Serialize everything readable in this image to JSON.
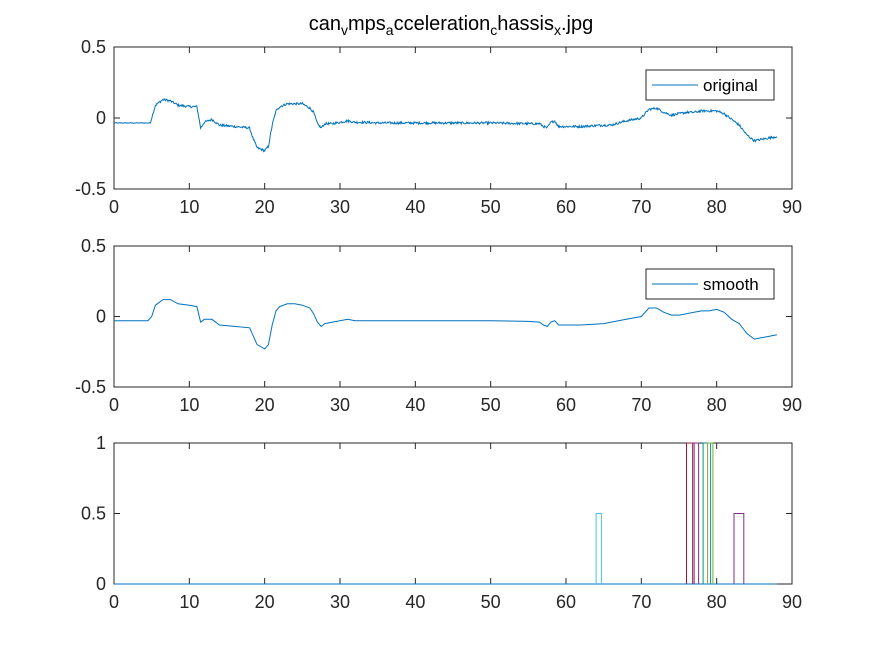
{
  "colors": {
    "original": "#0072BD",
    "smooth": "#0072BD",
    "axis": "#262626",
    "flag_lightblue": "#4DBEEE",
    "flag_red": "#A2142F",
    "flag_purple": "#7E2F8E",
    "flag_green": "#77AC30",
    "flag_teal": "#0A8F8F",
    "flag_baseline": "#0072BD"
  },
  "chart_data": [
    {
      "type": "line",
      "title": "can_v mps_a cceleration_c hassis_x .jpg",
      "title_parts": [
        {
          "text": "can",
          "sub": false
        },
        {
          "text": "v",
          "sub": true
        },
        {
          "text": "mps",
          "sub": false
        },
        {
          "text": "a",
          "sub": true
        },
        {
          "text": "cceleration",
          "sub": false
        },
        {
          "text": "c",
          "sub": true
        },
        {
          "text": "hassis",
          "sub": false
        },
        {
          "text": "x",
          "sub": true
        },
        {
          "text": ".jpg",
          "sub": false
        }
      ],
      "xlim": [
        0,
        90
      ],
      "ylim": [
        -0.5,
        0.5
      ],
      "xticks": [
        "0",
        "10",
        "20",
        "30",
        "40",
        "50",
        "60",
        "70",
        "80",
        "90"
      ],
      "yticks": [
        "-0.5",
        "0",
        "0.5"
      ],
      "legend_position": "top-right",
      "grid": false,
      "series": [
        {
          "name": "original",
          "noise": true,
          "x": [
            0,
            4.8,
            5.5,
            6.5,
            7.5,
            8.5,
            10,
            11,
            11.5,
            12,
            13,
            14,
            16,
            18,
            18.5,
            19,
            20,
            20.5,
            21,
            21.5,
            22,
            23,
            24,
            25,
            26,
            26.5,
            27,
            27.5,
            28,
            29,
            30,
            31,
            32,
            33,
            35,
            40,
            45,
            50,
            55,
            56.5,
            57,
            57.5,
            58,
            58.5,
            59,
            60,
            62,
            65,
            66,
            68,
            69,
            70,
            71,
            72,
            73,
            74,
            75,
            76,
            77,
            78,
            79,
            80,
            81,
            82,
            83,
            84,
            85,
            86,
            87,
            88
          ],
          "y": [
            -0.035,
            -0.035,
            0.09,
            0.13,
            0.12,
            0.09,
            0.08,
            0.08,
            -0.07,
            -0.03,
            -0.01,
            -0.05,
            -0.06,
            -0.07,
            -0.15,
            -0.21,
            -0.23,
            -0.2,
            -0.05,
            0.05,
            0.08,
            0.1,
            0.1,
            0.1,
            0.07,
            0.04,
            -0.04,
            -0.07,
            -0.04,
            -0.04,
            -0.03,
            -0.02,
            -0.03,
            -0.03,
            -0.035,
            -0.035,
            -0.035,
            -0.035,
            -0.04,
            -0.04,
            -0.06,
            -0.07,
            -0.03,
            -0.02,
            -0.06,
            -0.06,
            -0.06,
            -0.05,
            -0.05,
            -0.02,
            -0.01,
            0.0,
            0.06,
            0.07,
            0.04,
            0.02,
            0.03,
            0.04,
            0.04,
            0.05,
            0.05,
            0.05,
            0.03,
            -0.01,
            -0.05,
            -0.12,
            -0.16,
            -0.15,
            -0.14,
            -0.13
          ]
        }
      ]
    },
    {
      "type": "line",
      "xlim": [
        0,
        90
      ],
      "ylim": [
        -0.5,
        0.5
      ],
      "xticks": [
        "0",
        "10",
        "20",
        "30",
        "40",
        "50",
        "60",
        "70",
        "80",
        "90"
      ],
      "yticks": [
        "-0.5",
        "0",
        "0.5"
      ],
      "legend_position": "top-right",
      "grid": false,
      "series": [
        {
          "name": "smooth",
          "noise": false,
          "x": [
            0,
            4.5,
            5,
            5.5,
            6.5,
            7.5,
            8.5,
            10,
            11,
            11.5,
            12,
            13,
            14,
            16,
            18,
            18.5,
            19,
            20,
            20.5,
            21,
            21.5,
            22,
            23,
            24,
            25,
            26,
            26.5,
            27,
            27.5,
            28,
            29,
            30,
            31,
            32,
            33,
            35,
            40,
            45,
            50,
            55,
            56.5,
            57,
            57.5,
            58,
            58.5,
            59,
            60,
            62,
            65,
            66,
            68,
            69,
            70,
            71,
            72,
            73,
            74,
            75,
            76,
            77,
            78,
            79,
            80,
            81,
            82,
            83,
            84,
            85,
            86,
            87,
            88
          ],
          "y": [
            -0.03,
            -0.03,
            0.0,
            0.08,
            0.12,
            0.12,
            0.09,
            0.08,
            0.07,
            -0.04,
            -0.02,
            -0.02,
            -0.06,
            -0.07,
            -0.08,
            -0.14,
            -0.2,
            -0.23,
            -0.2,
            -0.06,
            0.04,
            0.07,
            0.09,
            0.09,
            0.08,
            0.06,
            0.02,
            -0.04,
            -0.07,
            -0.05,
            -0.04,
            -0.03,
            -0.02,
            -0.03,
            -0.03,
            -0.03,
            -0.03,
            -0.03,
            -0.03,
            -0.035,
            -0.04,
            -0.06,
            -0.07,
            -0.04,
            -0.03,
            -0.06,
            -0.06,
            -0.06,
            -0.05,
            -0.04,
            -0.02,
            -0.01,
            0.0,
            0.06,
            0.06,
            0.03,
            0.01,
            0.01,
            0.02,
            0.03,
            0.04,
            0.04,
            0.05,
            0.03,
            -0.02,
            -0.05,
            -0.12,
            -0.16,
            -0.15,
            -0.14,
            -0.13
          ]
        }
      ]
    },
    {
      "type": "line",
      "xlim": [
        0,
        90
      ],
      "ylim": [
        0,
        1
      ],
      "xticks": [
        "0",
        "10",
        "20",
        "30",
        "40",
        "50",
        "60",
        "70",
        "80",
        "90"
      ],
      "yticks": [
        "0",
        "0.5",
        "1"
      ],
      "grid": false,
      "series": [
        {
          "x": [
            0,
            88
          ],
          "y": [
            0,
            0
          ],
          "color_key": "flag_baseline"
        },
        {
          "x": [
            64,
            64,
            64.7,
            64.7
          ],
          "y": [
            0,
            0.5,
            0.5,
            0
          ],
          "color_key": "flag_lightblue"
        },
        {
          "x": [
            76,
            76,
            77,
            77
          ],
          "y": [
            0,
            1,
            1,
            0
          ],
          "color_key": "flag_red"
        },
        {
          "x": [
            76.8,
            76.8,
            77.6,
            77.6
          ],
          "y": [
            0,
            1,
            1,
            0
          ],
          "color_key": "flag_purple"
        },
        {
          "x": [
            78.2,
            78.2,
            79.2,
            79.2
          ],
          "y": [
            0,
            1,
            1,
            0
          ],
          "color_key": "flag_teal"
        },
        {
          "x": [
            78.8,
            78.8,
            79.5,
            79.5
          ],
          "y": [
            0,
            1,
            1,
            0
          ],
          "color_key": "flag_green"
        },
        {
          "x": [
            82.3,
            82.3,
            83.6,
            83.6
          ],
          "y": [
            0,
            0.5,
            0.5,
            0
          ],
          "color_key": "flag_purple"
        }
      ]
    }
  ]
}
